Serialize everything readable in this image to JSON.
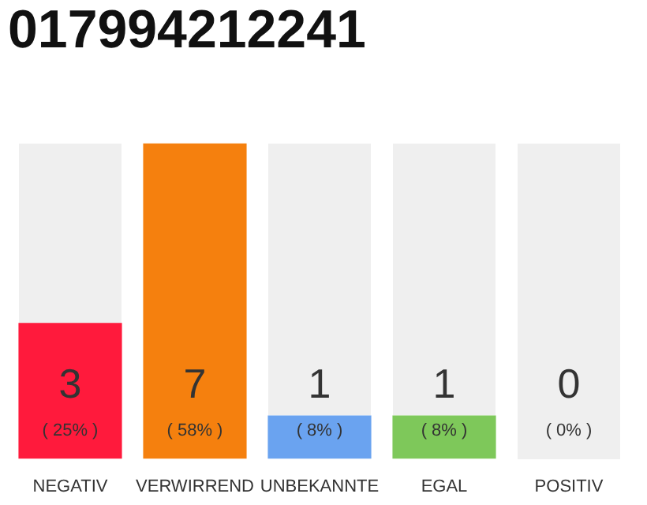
{
  "chart_data": {
    "type": "bar",
    "title": "017994212241",
    "categories": [
      "NEGATIV",
      "VERWIRREND",
      "UNBEKANNTE",
      "EGAL",
      "POSITIV"
    ],
    "values": [
      25,
      58,
      8,
      8,
      0
    ],
    "value_labels": [
      "( 25% )",
      "( 58% )",
      "( 8% )",
      "( 8% )",
      "( 0% )"
    ],
    "colors": [
      "#ff1a3c",
      "#f5800e",
      "#6aa3f0",
      "#7ec85a",
      "#e0e0e0"
    ],
    "annotations": [
      "3",
      "7",
      "1",
      "1",
      "0"
    ],
    "tick_labels": "x",
    "grid": false,
    "legend": false
  }
}
